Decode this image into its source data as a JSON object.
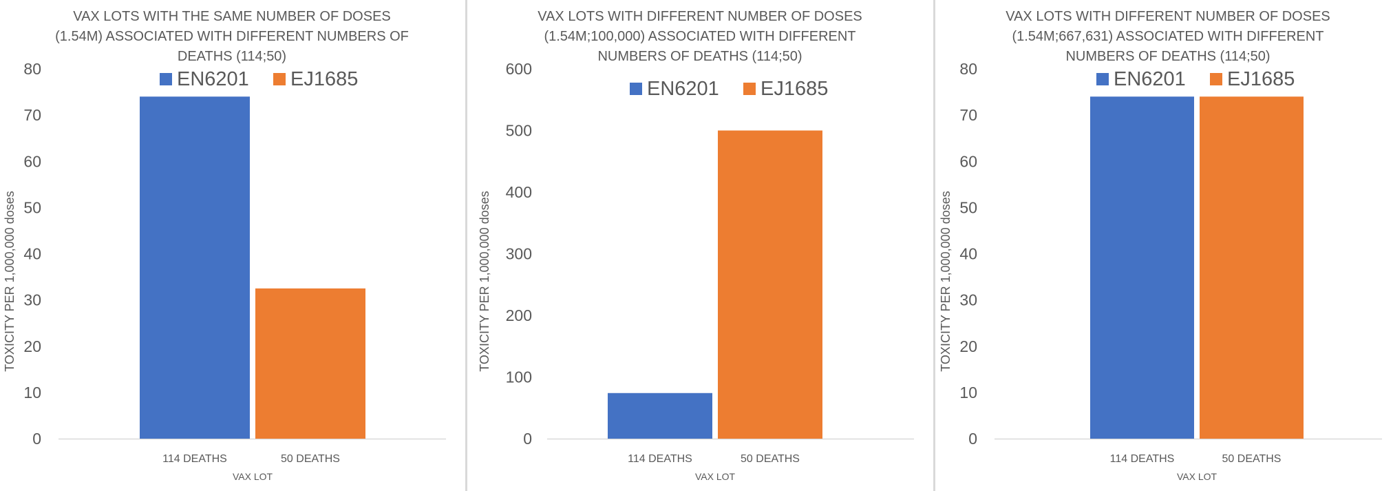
{
  "chart_data": [
    {
      "type": "bar",
      "title_lines": [
        "VAX LOTS WITH THE SAME NUMBER OF DOSES",
        "(1.54M) ASSOCIATED WITH DIFFERENT NUMBERS OF",
        "DEATHS (114;50)"
      ],
      "categories": [
        "114 DEATHS",
        "50 DEATHS"
      ],
      "series": [
        {
          "name": "EN6201",
          "color": "#4472C4",
          "value": 74
        },
        {
          "name": "EJ1685",
          "color": "#ED7D31",
          "value": 32.5
        }
      ],
      "xlabel": "VAX LOT",
      "ylabel": "TOXICITY PER 1,000,000 doses",
      "ylim": [
        0,
        80
      ],
      "yticks": [
        0,
        10,
        20,
        30,
        40,
        50,
        60,
        70,
        80
      ],
      "legend": "top",
      "grid": false
    },
    {
      "type": "bar",
      "title_lines": [
        "VAX LOTS WITH DIFFERENT NUMBER OF DOSES",
        "(1.54M;100,000) ASSOCIATED WITH DIFFERENT",
        "NUMBERS OF DEATHS (114;50)"
      ],
      "categories": [
        "114 DEATHS",
        "50 DEATHS"
      ],
      "series": [
        {
          "name": "EN6201",
          "color": "#4472C4",
          "value": 74
        },
        {
          "name": "EJ1685",
          "color": "#ED7D31",
          "value": 500
        }
      ],
      "xlabel": "VAX LOT",
      "ylabel": "TOXICITY PER 1,000,000 doses",
      "ylim": [
        0,
        600
      ],
      "yticks": [
        0,
        100,
        200,
        300,
        400,
        500,
        600
      ],
      "legend": "top",
      "grid": false
    },
    {
      "type": "bar",
      "title_lines": [
        "VAX LOTS WITH DIFFERENT NUMBER OF DOSES",
        "(1.54M;667,631) ASSOCIATED WITH DIFFERENT",
        "NUMBERS OF DEATHS (114;50)"
      ],
      "categories": [
        "114 DEATHS",
        "50 DEATHS"
      ],
      "series": [
        {
          "name": "EN6201",
          "color": "#4472C4",
          "value": 74
        },
        {
          "name": "EJ1685",
          "color": "#ED7D31",
          "value": 74
        }
      ],
      "xlabel": "VAX LOT",
      "ylabel": "TOXICITY PER 1,000,000 doses",
      "ylim": [
        0,
        80
      ],
      "yticks": [
        0,
        10,
        20,
        30,
        40,
        50,
        60,
        70,
        80
      ],
      "legend": "top",
      "grid": false
    }
  ]
}
